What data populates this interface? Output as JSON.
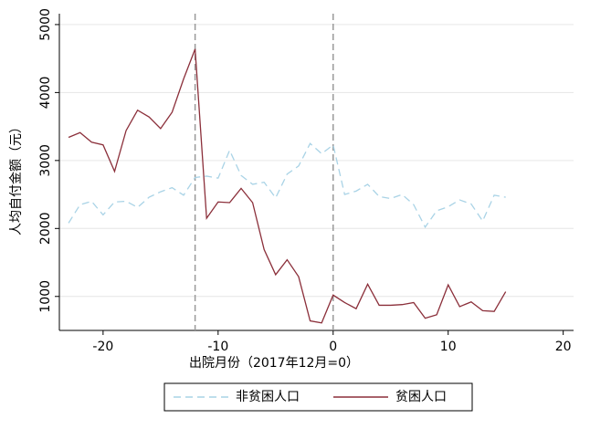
{
  "chart_data": {
    "type": "line",
    "x_label": "出院月份（2017年12月=0）",
    "y_label": "人均自付金额（元）",
    "x": [
      -23,
      -22,
      -21,
      -20,
      -19,
      -18,
      -17,
      -16,
      -15,
      -14,
      -13,
      -12,
      -11,
      -10,
      -9,
      -8,
      -7,
      -6,
      -5,
      -4,
      -3,
      -2,
      -1,
      0,
      1,
      2,
      3,
      4,
      5,
      6,
      7,
      8,
      9,
      10,
      11,
      12,
      13,
      14,
      15
    ],
    "series": [
      {
        "name": "非贫困人口",
        "color": "#a9d3e6",
        "dash": true,
        "values": [
          2080,
          2350,
          2400,
          2200,
          2390,
          2400,
          2310,
          2460,
          2540,
          2600,
          2490,
          2750,
          2770,
          2740,
          3150,
          2780,
          2650,
          2680,
          2450,
          2800,
          2920,
          3250,
          3100,
          3230,
          2500,
          2550,
          2650,
          2470,
          2440,
          2500,
          2350,
          2020,
          2260,
          2320,
          2420,
          2360,
          2110,
          2490,
          2460
        ]
      },
      {
        "name": "贫困人口",
        "color": "#8b2f3a",
        "dash": false,
        "values": [
          3340,
          3410,
          3270,
          3230,
          2840,
          3440,
          3740,
          3640,
          3470,
          3710,
          4200,
          4640,
          2150,
          2390,
          2380,
          2590,
          2380,
          1690,
          1320,
          1540,
          1290,
          640,
          610,
          1020,
          910,
          820,
          1180,
          870,
          870,
          880,
          910,
          680,
          730,
          1170,
          850,
          920,
          790,
          780,
          1070
        ]
      }
    ],
    "vlines": [
      -12,
      0
    ],
    "xlim": [
      -23.8,
      20.9
    ],
    "xticks": [
      -20,
      -10,
      0,
      10,
      20
    ],
    "ylim": [
      500,
      5160
    ],
    "yticks": [
      1000,
      2000,
      3000,
      4000,
      5000
    ],
    "grid": true
  }
}
